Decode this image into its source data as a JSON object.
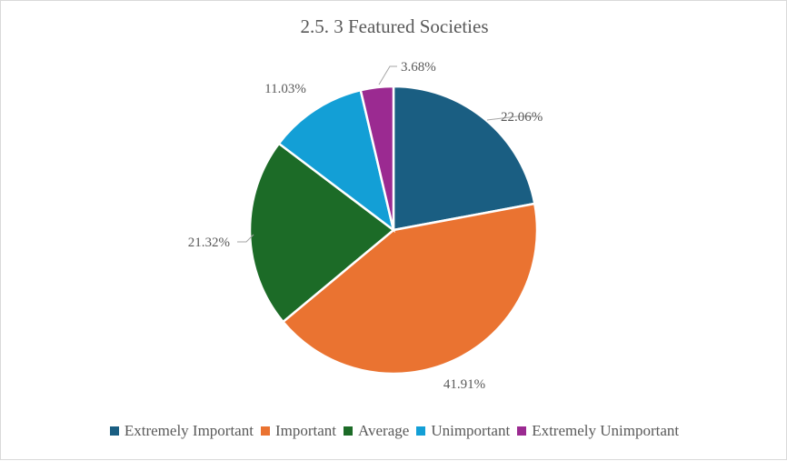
{
  "chart_data": {
    "type": "pie",
    "title": "2.5. 3 Featured Societies",
    "categories": [
      "Extremely Important",
      "Important",
      "Average",
      "Unimportant",
      "Extremely Unimportant"
    ],
    "values": [
      22.06,
      41.91,
      21.32,
      11.03,
      3.68
    ],
    "data_labels": [
      "22.06%",
      "41.91%",
      "21.32%",
      "11.03%",
      "3.68%"
    ],
    "colors": [
      "#1a5e82",
      "#ea7331",
      "#1c6b27",
      "#139fd6",
      "#9b2a91"
    ],
    "legend_position": "bottom",
    "start_angle_deg": 0,
    "direction": "clockwise"
  }
}
